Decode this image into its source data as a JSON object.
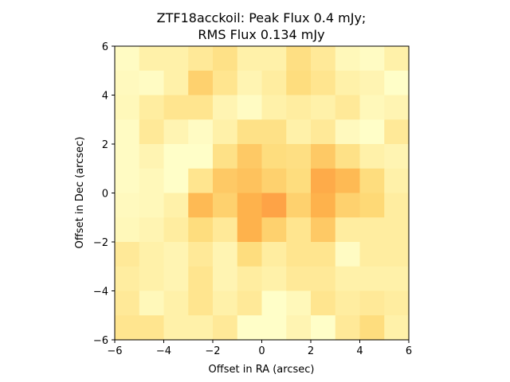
{
  "chart_data": {
    "type": "heatmap",
    "title_line1": "ZTF18acckoil: Peak Flux 0.4 mJy;",
    "title_line2": "RMS Flux 0.134 mJy",
    "xlabel": "Offset in RA (arcsec)",
    "ylabel": "Offset in Dec (arcsec)",
    "xlim": [
      -6,
      6
    ],
    "ylim": [
      -6,
      6
    ],
    "xticks": [
      -6,
      -4,
      -2,
      0,
      2,
      4,
      6
    ],
    "yticks": [
      -6,
      -4,
      -2,
      0,
      2,
      4,
      6
    ],
    "xtick_labels": [
      "−6",
      "−4",
      "−2",
      "0",
      "2",
      "4",
      "6"
    ],
    "ytick_labels": [
      "−6",
      "−4",
      "−2",
      "0",
      "2",
      "4",
      "6"
    ],
    "colormap": [
      "#ffffcc",
      "#ffeda0",
      "#fed976",
      "#feb24c",
      "#fd8d3c"
    ],
    "grid_rows_top_to_bottom": [
      [
        0.05,
        0.2,
        0.2,
        0.3,
        0.4,
        0.2,
        0.2,
        0.42,
        0.3,
        0.1,
        0.05,
        0.2
      ],
      [
        0.08,
        0.05,
        0.2,
        0.55,
        0.35,
        0.15,
        0.25,
        0.45,
        0.35,
        0.2,
        0.15,
        0.02
      ],
      [
        0.1,
        0.25,
        0.35,
        0.35,
        0.15,
        0.05,
        0.2,
        0.25,
        0.2,
        0.3,
        0.1,
        0.15
      ],
      [
        0.05,
        0.3,
        0.15,
        0.05,
        0.2,
        0.4,
        0.4,
        0.2,
        0.3,
        0.08,
        0.02,
        0.3
      ],
      [
        0.05,
        0.15,
        0.02,
        0.02,
        0.4,
        0.6,
        0.45,
        0.42,
        0.6,
        0.4,
        0.2,
        0.15
      ],
      [
        0.05,
        0.1,
        0.02,
        0.35,
        0.6,
        0.65,
        0.55,
        0.45,
        0.8,
        0.7,
        0.45,
        0.2
      ],
      [
        0.08,
        0.1,
        0.2,
        0.7,
        0.55,
        0.75,
        0.85,
        0.55,
        0.75,
        0.55,
        0.5,
        0.25
      ],
      [
        0.1,
        0.15,
        0.25,
        0.45,
        0.3,
        0.75,
        0.55,
        0.35,
        0.6,
        0.25,
        0.25,
        0.25
      ],
      [
        0.3,
        0.2,
        0.15,
        0.3,
        0.15,
        0.45,
        0.25,
        0.35,
        0.35,
        0.05,
        0.25,
        0.25
      ],
      [
        0.25,
        0.2,
        0.15,
        0.35,
        0.15,
        0.25,
        0.2,
        0.3,
        0.3,
        0.2,
        0.2,
        0.2
      ],
      [
        0.3,
        0.1,
        0.2,
        0.35,
        0.2,
        0.3,
        0.02,
        0.1,
        0.35,
        0.25,
        0.3,
        0.25
      ],
      [
        0.35,
        0.35,
        0.2,
        0.2,
        0.3,
        0.02,
        0.02,
        0.15,
        0.02,
        0.3,
        0.45,
        0.2
      ]
    ]
  }
}
